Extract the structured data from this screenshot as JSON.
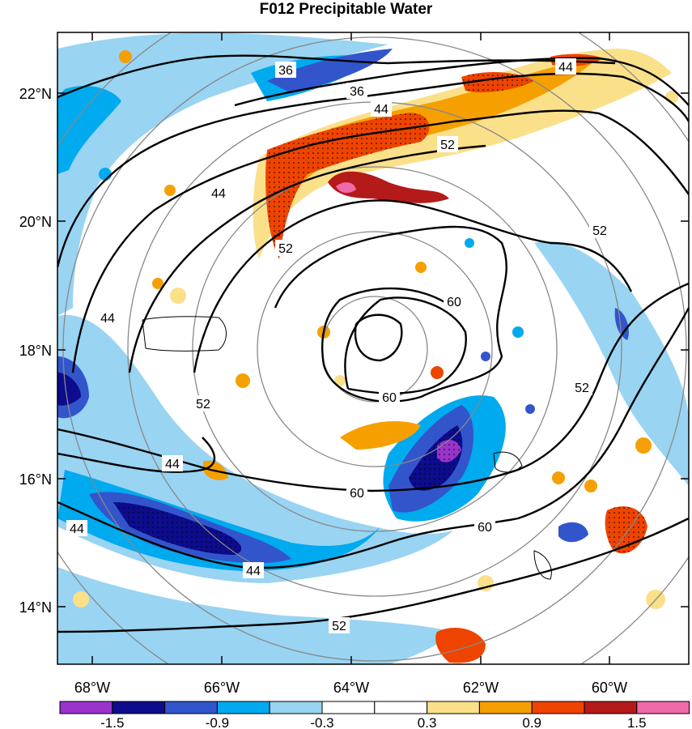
{
  "title": "F012 Precipitable Water",
  "axes": {
    "lat_labels": [
      "22°N",
      "20°N",
      "18°N",
      "16°N",
      "14°N"
    ],
    "lon_labels": [
      "68°W",
      "66°W",
      "64°W",
      "62°W",
      "60°W"
    ]
  },
  "contour_labels": [
    "36",
    "36",
    "44",
    "44",
    "44",
    "44",
    "44",
    "44",
    "44",
    "52",
    "52",
    "52",
    "52",
    "52",
    "52",
    "60",
    "60"
  ],
  "colorbar": {
    "tick_labels": [
      "-1.5",
      "-0.9",
      "-0.3",
      "0.3",
      "0.9",
      "1.5"
    ],
    "colors": [
      "#9933cc",
      "#0c0c8c",
      "#3355cc",
      "#00aaee",
      "#99d4f2",
      "#ffffff",
      "#ffffff",
      "#fbe08a",
      "#f5a000",
      "#ee4400",
      "#b41a1a",
      "#ee6aa8"
    ]
  }
}
